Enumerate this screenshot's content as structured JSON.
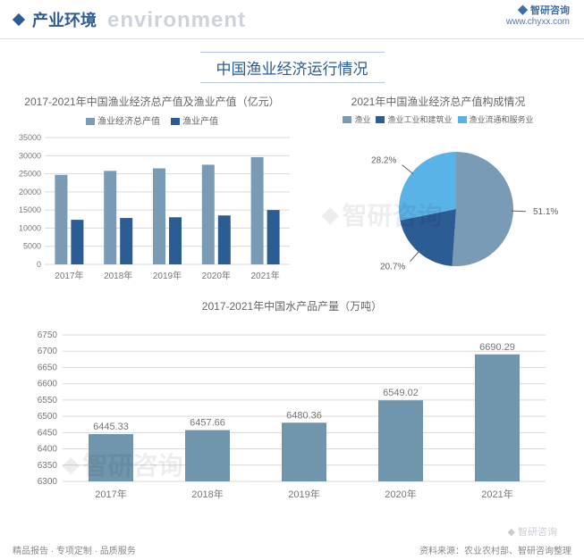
{
  "header": {
    "title_cn": "产业环境",
    "title_ghost": "environment",
    "brand": "智研咨询",
    "site": "www.chyxx.com"
  },
  "main_title": "中国渔业经济运行情况",
  "bar_chart": {
    "title": "2017-2021年中国渔业经济总产值及渔业产值（亿元）",
    "legend_a": "渔业经济总产值",
    "legend_b": "渔业产值",
    "colors": {
      "a": "#7a9bb5",
      "b": "#2b5c94",
      "grid": "#d9d9d9",
      "text": "#777"
    },
    "categories": [
      "2017年",
      "2018年",
      "2019年",
      "2020年",
      "2021年"
    ],
    "y_max": 35000,
    "y_step": 5000,
    "series_a": [
      24700,
      25800,
      26500,
      27500,
      29600
    ],
    "series_b": [
      12300,
      12800,
      13000,
      13500,
      15000
    ]
  },
  "pie_chart": {
    "title": "2021年中国渔业经济总产值构成情况",
    "legend": [
      "渔业",
      "渔业工业和建筑业",
      "渔业流通和服务业"
    ],
    "colors": [
      "#7a9bb5",
      "#2b5c94",
      "#5ab3e6"
    ],
    "label_color": "#606060",
    "slices": [
      {
        "value": 51.1,
        "label": "51.1%"
      },
      {
        "value": 20.7,
        "label": "20.7%"
      },
      {
        "value": 28.2,
        "label": "28.2%"
      }
    ]
  },
  "column_chart": {
    "title": "2017-2021年中国水产品产量（万吨）",
    "color": "#6f96ad",
    "grid": "#d9d9d9",
    "text": "#777",
    "categories": [
      "2017年",
      "2018年",
      "2019年",
      "2020年",
      "2021年"
    ],
    "y_min": 6300,
    "y_max": 6750,
    "y_step": 50,
    "values": [
      6445.33,
      6457.66,
      6480.36,
      6549.02,
      6690.29
    ],
    "labels": [
      "6445.33",
      "6457.66",
      "6480.36",
      "6549.02",
      "6690.29"
    ]
  },
  "footer": {
    "left": "精品报告 · 专项定制 · 品质服务",
    "right_prefix": "资料来源：",
    "right_source": "农业农村部、智研咨询整理"
  },
  "watermark_text": "智研咨询",
  "logo_bottom": "智研咨询"
}
